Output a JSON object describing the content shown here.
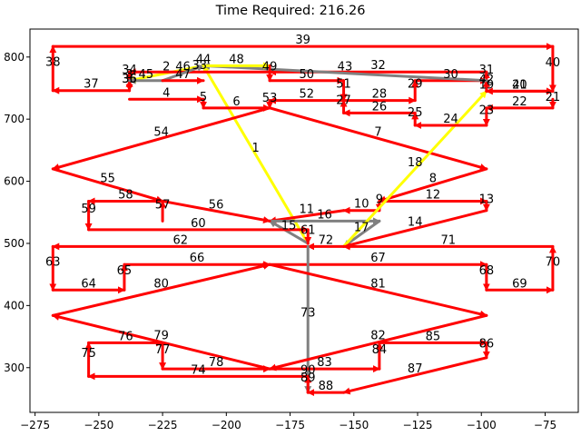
{
  "chart_data": {
    "type": "line",
    "title": "Time Required: 216.26",
    "xlabel": "",
    "ylabel": "",
    "xlim": [
      -277,
      -62
    ],
    "ylim": [
      228,
      845
    ],
    "xticks": [
      -275,
      -250,
      -225,
      -200,
      -175,
      -150,
      -125,
      -100,
      -75
    ],
    "yticks": [
      300,
      400,
      500,
      600,
      700,
      800
    ],
    "grid": false,
    "colors": {
      "red": "#ff0000",
      "yellow": "#ffff00",
      "gray": "#808080"
    },
    "segments": [
      {
        "label": "1",
        "x1": -168,
        "y1": 500,
        "x2": -209,
        "y2": 786,
        "color": "yellow"
      },
      {
        "label": "2",
        "x1": -209,
        "y1": 786,
        "x2": -238,
        "y2": 762,
        "color": "yellow"
      },
      {
        "label": "3",
        "x1": -238,
        "y1": 762,
        "x2": -238,
        "y2": 762,
        "color": "red"
      },
      {
        "label": "4",
        "x1": -238,
        "y1": 732,
        "x2": -209,
        "y2": 732,
        "color": "red"
      },
      {
        "label": "5",
        "x1": -209,
        "y1": 732,
        "x2": -209,
        "y2": 718,
        "color": "red"
      },
      {
        "label": "6",
        "x1": -209,
        "y1": 718,
        "x2": -183,
        "y2": 718,
        "color": "red"
      },
      {
        "label": "7",
        "x1": -183,
        "y1": 718,
        "x2": -98,
        "y2": 620,
        "color": "red"
      },
      {
        "label": "8",
        "x1": -98,
        "y1": 620,
        "x2": -140,
        "y2": 568,
        "color": "red"
      },
      {
        "label": "9",
        "x1": -140,
        "y1": 568,
        "x2": -140,
        "y2": 553,
        "color": "red"
      },
      {
        "label": "10",
        "x1": -140,
        "y1": 553,
        "x2": -154,
        "y2": 553,
        "color": "red"
      },
      {
        "label": "11",
        "x1": -154,
        "y1": 553,
        "x2": -183,
        "y2": 536,
        "color": "red"
      },
      {
        "label": "12",
        "x1": -140,
        "y1": 568,
        "x2": -98,
        "y2": 568,
        "color": "red"
      },
      {
        "label": "13",
        "x1": -98,
        "y1": 568,
        "x2": -98,
        "y2": 553,
        "color": "red"
      },
      {
        "label": "14",
        "x1": -98,
        "y1": 553,
        "x2": -154,
        "y2": 495,
        "color": "red"
      },
      {
        "label": "15",
        "x1": -168,
        "y1": 500,
        "x2": -183,
        "y2": 536,
        "color": "gray"
      },
      {
        "label": "16",
        "x1": -183,
        "y1": 536,
        "x2": -140,
        "y2": 536,
        "color": "gray"
      },
      {
        "label": "17",
        "x1": -140,
        "y1": 536,
        "x2": -154,
        "y2": 495,
        "color": "gray"
      },
      {
        "label": "18",
        "x1": -154,
        "y1": 495,
        "x2": -98,
        "y2": 745,
        "color": "yellow"
      },
      {
        "label": "19",
        "x1": -98,
        "y1": 745,
        "x2": -98,
        "y2": 745,
        "color": "red"
      },
      {
        "label": "20",
        "x1": -98,
        "y1": 745,
        "x2": -72,
        "y2": 745,
        "color": "red"
      },
      {
        "label": "21",
        "x1": -72,
        "y1": 732,
        "x2": -72,
        "y2": 718,
        "color": "red"
      },
      {
        "label": "22",
        "x1": -72,
        "y1": 718,
        "x2": -98,
        "y2": 718,
        "color": "red"
      },
      {
        "label": "23",
        "x1": -98,
        "y1": 718,
        "x2": -98,
        "y2": 690,
        "color": "red"
      },
      {
        "label": "24",
        "x1": -98,
        "y1": 690,
        "x2": -126,
        "y2": 690,
        "color": "red"
      },
      {
        "label": "25",
        "x1": -126,
        "y1": 690,
        "x2": -126,
        "y2": 710,
        "color": "red"
      },
      {
        "label": "26",
        "x1": -126,
        "y1": 710,
        "x2": -154,
        "y2": 710,
        "color": "red"
      },
      {
        "label": "27",
        "x1": -154,
        "y1": 710,
        "x2": -154,
        "y2": 730,
        "color": "red"
      },
      {
        "label": "28",
        "x1": -154,
        "y1": 730,
        "x2": -126,
        "y2": 730,
        "color": "red"
      },
      {
        "label": "29",
        "x1": -126,
        "y1": 730,
        "x2": -126,
        "y2": 762,
        "color": "red"
      },
      {
        "label": "30",
        "x1": -126,
        "y1": 762,
        "x2": -98,
        "y2": 762,
        "color": "red"
      },
      {
        "label": "31",
        "x1": -98,
        "y1": 762,
        "x2": -98,
        "y2": 776,
        "color": "red"
      },
      {
        "label": "32",
        "x1": -98,
        "y1": 776,
        "x2": -183,
        "y2": 776,
        "color": "red"
      },
      {
        "label": "33",
        "x1": -183,
        "y1": 776,
        "x2": -238,
        "y2": 776,
        "color": "red"
      },
      {
        "label": "34",
        "x1": -238,
        "y1": 776,
        "x2": -238,
        "y2": 762,
        "color": "red"
      },
      {
        "label": "35",
        "x1": -238,
        "y1": 762,
        "x2": -238,
        "y2": 746,
        "color": "red"
      },
      {
        "label": "36",
        "x1": -238,
        "y1": 746,
        "x2": -238,
        "y2": 762,
        "color": "red"
      },
      {
        "label": "37",
        "x1": -238,
        "y1": 746,
        "x2": -268,
        "y2": 746,
        "color": "red"
      },
      {
        "label": "38",
        "x1": -268,
        "y1": 746,
        "x2": -268,
        "y2": 817,
        "color": "red"
      },
      {
        "label": "39",
        "x1": -268,
        "y1": 817,
        "x2": -72,
        "y2": 817,
        "color": "red"
      },
      {
        "label": "40",
        "x1": -72,
        "y1": 817,
        "x2": -72,
        "y2": 745,
        "color": "red"
      },
      {
        "label": "41",
        "x1": -72,
        "y1": 745,
        "x2": -98,
        "y2": 745,
        "color": "red"
      },
      {
        "label": "42",
        "x1": -98,
        "y1": 745,
        "x2": -98,
        "y2": 762,
        "color": "red"
      },
      {
        "label": "43",
        "x1": -98,
        "y1": 762,
        "x2": -209,
        "y2": 786,
        "color": "gray"
      },
      {
        "label": "44",
        "x1": -209,
        "y1": 786,
        "x2": -209,
        "y2": 786,
        "color": "yellow"
      },
      {
        "label": "45",
        "x1": -225,
        "y1": 762,
        "x2": -238,
        "y2": 762,
        "color": "gray"
      },
      {
        "label": "46",
        "x1": -225,
        "y1": 762,
        "x2": -209,
        "y2": 786,
        "color": "gray"
      },
      {
        "label": "47",
        "x1": -225,
        "y1": 762,
        "x2": -209,
        "y2": 762,
        "color": "red"
      },
      {
        "label": "48",
        "x1": -209,
        "y1": 786,
        "x2": -183,
        "y2": 786,
        "color": "yellow"
      },
      {
        "label": "49",
        "x1": -183,
        "y1": 786,
        "x2": -183,
        "y2": 762,
        "color": "red"
      },
      {
        "label": "50",
        "x1": -183,
        "y1": 762,
        "x2": -154,
        "y2": 762,
        "color": "red"
      },
      {
        "label": "51",
        "x1": -154,
        "y1": 762,
        "x2": -154,
        "y2": 730,
        "color": "red"
      },
      {
        "label": "52",
        "x1": -154,
        "y1": 730,
        "x2": -183,
        "y2": 730,
        "color": "red"
      },
      {
        "label": "53",
        "x1": -183,
        "y1": 730,
        "x2": -183,
        "y2": 718,
        "color": "red"
      },
      {
        "label": "54",
        "x1": -183,
        "y1": 718,
        "x2": -268,
        "y2": 620,
        "color": "red"
      },
      {
        "label": "55",
        "x1": -268,
        "y1": 620,
        "x2": -225,
        "y2": 568,
        "color": "red"
      },
      {
        "label": "56",
        "x1": -225,
        "y1": 568,
        "x2": -183,
        "y2": 536,
        "color": "red"
      },
      {
        "label": "57",
        "x1": -225,
        "y1": 536,
        "x2": -225,
        "y2": 568,
        "color": "red"
      },
      {
        "label": "58",
        "x1": -225,
        "y1": 568,
        "x2": -254,
        "y2": 568,
        "color": "red"
      },
      {
        "label": "59",
        "x1": -254,
        "y1": 568,
        "x2": -254,
        "y2": 522,
        "color": "red"
      },
      {
        "label": "60",
        "x1": -254,
        "y1": 522,
        "x2": -168,
        "y2": 522,
        "color": "red"
      },
      {
        "label": "61",
        "x1": -168,
        "y1": 522,
        "x2": -168,
        "y2": 500,
        "color": "red"
      },
      {
        "label": "62",
        "x1": -168,
        "y1": 495,
        "x2": -268,
        "y2": 495,
        "color": "red"
      },
      {
        "label": "63",
        "x1": -268,
        "y1": 495,
        "x2": -268,
        "y2": 425,
        "color": "red"
      },
      {
        "label": "64",
        "x1": -268,
        "y1": 425,
        "x2": -240,
        "y2": 425,
        "color": "red"
      },
      {
        "label": "65",
        "x1": -240,
        "y1": 425,
        "x2": -240,
        "y2": 466,
        "color": "red"
      },
      {
        "label": "66",
        "x1": -240,
        "y1": 466,
        "x2": -183,
        "y2": 466,
        "color": "red"
      },
      {
        "label": "67",
        "x1": -183,
        "y1": 466,
        "x2": -98,
        "y2": 466,
        "color": "red"
      },
      {
        "label": "68",
        "x1": -98,
        "y1": 466,
        "x2": -98,
        "y2": 425,
        "color": "red"
      },
      {
        "label": "69",
        "x1": -98,
        "y1": 425,
        "x2": -72,
        "y2": 425,
        "color": "red"
      },
      {
        "label": "70",
        "x1": -72,
        "y1": 425,
        "x2": -72,
        "y2": 495,
        "color": "red"
      },
      {
        "label": "71",
        "x1": -72,
        "y1": 495,
        "x2": -154,
        "y2": 495,
        "color": "red"
      },
      {
        "label": "72",
        "x1": -154,
        "y1": 495,
        "x2": -168,
        "y2": 495,
        "color": "red"
      },
      {
        "label": "73",
        "x1": -168,
        "y1": 495,
        "x2": -168,
        "y2": 260,
        "color": "gray"
      },
      {
        "label": "74",
        "x1": -168,
        "y1": 286,
        "x2": -254,
        "y2": 286,
        "color": "red"
      },
      {
        "label": "75",
        "x1": -254,
        "y1": 286,
        "x2": -254,
        "y2": 340,
        "color": "red"
      },
      {
        "label": "76",
        "x1": -254,
        "y1": 340,
        "x2": -225,
        "y2": 340,
        "color": "red"
      },
      {
        "label": "77",
        "x1": -225,
        "y1": 340,
        "x2": -225,
        "y2": 298,
        "color": "red"
      },
      {
        "label": "78",
        "x1": -225,
        "y1": 298,
        "x2": -183,
        "y2": 298,
        "color": "red"
      },
      {
        "label": "79",
        "x1": -183,
        "y1": 298,
        "x2": -268,
        "y2": 384,
        "color": "red"
      },
      {
        "label": "80",
        "x1": -268,
        "y1": 384,
        "x2": -183,
        "y2": 466,
        "color": "red"
      },
      {
        "label": "81",
        "x1": -183,
        "y1": 466,
        "x2": -98,
        "y2": 384,
        "color": "red"
      },
      {
        "label": "82",
        "x1": -98,
        "y1": 384,
        "x2": -183,
        "y2": 298,
        "color": "red"
      },
      {
        "label": "83",
        "x1": -183,
        "y1": 298,
        "x2": -140,
        "y2": 298,
        "color": "red"
      },
      {
        "label": "84",
        "x1": -140,
        "y1": 298,
        "x2": -140,
        "y2": 340,
        "color": "red"
      },
      {
        "label": "85",
        "x1": -140,
        "y1": 340,
        "x2": -98,
        "y2": 340,
        "color": "red"
      },
      {
        "label": "86",
        "x1": -98,
        "y1": 340,
        "x2": -98,
        "y2": 316,
        "color": "red"
      },
      {
        "label": "87",
        "x1": -98,
        "y1": 316,
        "x2": -154,
        "y2": 260,
        "color": "red"
      },
      {
        "label": "88",
        "x1": -154,
        "y1": 260,
        "x2": -168,
        "y2": 260,
        "color": "red"
      },
      {
        "label": "89",
        "x1": -168,
        "y1": 260,
        "x2": -168,
        "y2": 286,
        "color": "red"
      },
      {
        "label": "90",
        "x1": -168,
        "y1": 286,
        "x2": -168,
        "y2": 286,
        "color": "red"
      }
    ]
  }
}
